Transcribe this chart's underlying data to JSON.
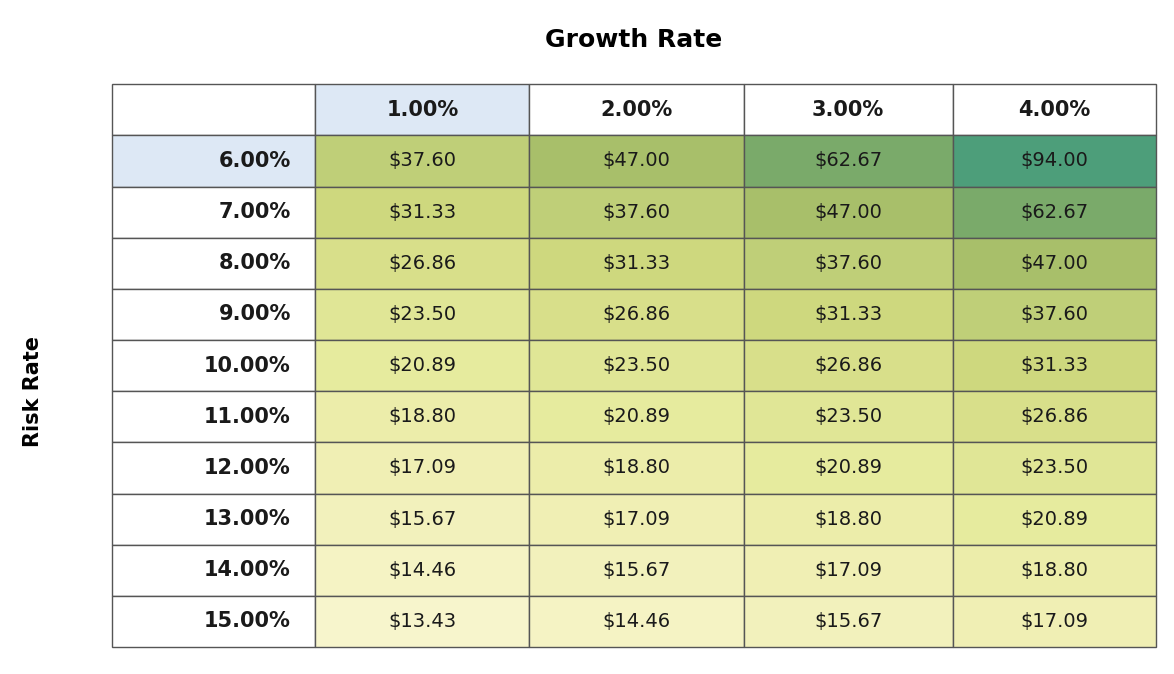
{
  "title": "Growth Rate",
  "ylabel": "Risk Rate",
  "col_headers": [
    "",
    "1.00%",
    "2.00%",
    "3.00%",
    "4.00%"
  ],
  "row_headers": [
    "6.00%",
    "7.00%",
    "8.00%",
    "9.00%",
    "10.00%",
    "11.00%",
    "12.00%",
    "13.00%",
    "14.00%",
    "15.00%"
  ],
  "values": [
    [
      "$37.60",
      "$47.00",
      "$62.67",
      "$94.00"
    ],
    [
      "$31.33",
      "$37.60",
      "$47.00",
      "$62.67"
    ],
    [
      "$26.86",
      "$31.33",
      "$37.60",
      "$47.00"
    ],
    [
      "$23.50",
      "$26.86",
      "$31.33",
      "$37.60"
    ],
    [
      "$20.89",
      "$23.50",
      "$26.86",
      "$31.33"
    ],
    [
      "$18.80",
      "$20.89",
      "$23.50",
      "$26.86"
    ],
    [
      "$17.09",
      "$18.80",
      "$20.89",
      "$23.50"
    ],
    [
      "$15.67",
      "$17.09",
      "$18.80",
      "$20.89"
    ],
    [
      "$14.46",
      "$15.67",
      "$17.09",
      "$18.80"
    ],
    [
      "$13.43",
      "$14.46",
      "$15.67",
      "$17.09"
    ]
  ],
  "cell_colors": [
    [
      "#bfcf78",
      "#a8bf6a",
      "#7aaa6a",
      "#4d9e7a"
    ],
    [
      "#ced87e",
      "#bfcf78",
      "#a8bf6a",
      "#7aaa6a"
    ],
    [
      "#d8df8a",
      "#ced87e",
      "#bfcf78",
      "#a8bf6a"
    ],
    [
      "#e0e696",
      "#d8df8a",
      "#ced87e",
      "#bfcf78"
    ],
    [
      "#e6eb9e",
      "#e0e696",
      "#d8df8a",
      "#ced87e"
    ],
    [
      "#ecedaa",
      "#e6eb9e",
      "#e0e696",
      "#d8df8a"
    ],
    [
      "#f0efb4",
      "#ecedaa",
      "#e6eb9e",
      "#e0e696"
    ],
    [
      "#f2f1bc",
      "#f0efb4",
      "#ecedaa",
      "#e6eb9e"
    ],
    [
      "#f5f3c4",
      "#f2f1bc",
      "#f0efb4",
      "#ecedaa"
    ],
    [
      "#f7f5cc",
      "#f5f3c4",
      "#f2f1bc",
      "#f0efb4"
    ]
  ],
  "col_header_bg": [
    "#dde8f5",
    "#ffffff",
    "#ffffff",
    "#ffffff"
  ],
  "row_header_bg": [
    "#dde8f5",
    "#ffffff",
    "#ffffff",
    "#ffffff",
    "#ffffff",
    "#ffffff",
    "#ffffff",
    "#ffffff",
    "#ffffff",
    "#ffffff"
  ],
  "title_fontsize": 18,
  "header_fontsize": 15,
  "cell_fontsize": 14,
  "row_label_fontsize": 15,
  "ylabel_fontsize": 15,
  "edge_color": "#555555",
  "text_color": "#1a1a1a"
}
